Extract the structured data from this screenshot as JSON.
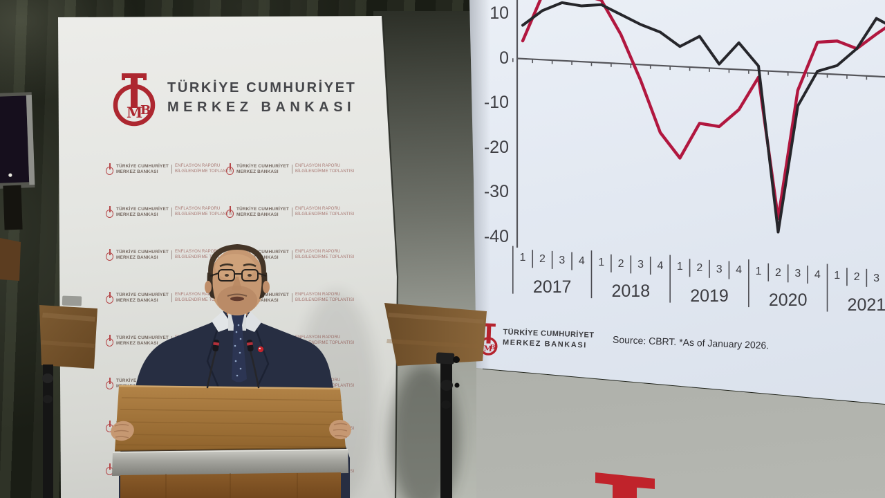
{
  "backdrop": {
    "logo": {
      "line1": "TÜRKİYE CUMHURİYET",
      "line2": "MERKEZ BANKASI"
    },
    "pattern_unit": {
      "brand_line1": "TÜRKİYE CUMHURİYET",
      "brand_line2": "MERKEZ BANKASI",
      "event_line1": "ENFLASYON RAPORU",
      "event_line2": "BİLGİLENDİRME TOPLANTISI"
    },
    "pattern_grid": {
      "rows": 8,
      "cols": 2
    }
  },
  "slide": {
    "footer": {
      "logo_line1": "TÜRKİYE CUMHURİYET",
      "logo_line2": "MERKEZ BANKASI",
      "source": "Source: CBRT. *As of January 2026."
    }
  },
  "chart_data": {
    "type": "line",
    "x_unit": "quarter",
    "years": [
      "2017",
      "2018",
      "2019",
      "2020",
      "2021"
    ],
    "quarter_labels": [
      "1",
      "2",
      "3",
      "4",
      "1",
      "2",
      "3",
      "4",
      "1",
      "2",
      "3",
      "4",
      "1",
      "2",
      "3",
      "4",
      "1",
      "2",
      "3"
    ],
    "y_ticks": [
      "10",
      "0",
      "-10",
      "-20",
      "-30",
      "-40"
    ],
    "y_tick_values": [
      10,
      0,
      -10,
      -20,
      -30,
      -40
    ],
    "ylim": [
      -42,
      16
    ],
    "grid": "off",
    "legend": "not visible (cropped above frame)",
    "series": [
      {
        "name": "red-series",
        "color": "#b1173f",
        "values": [
          4,
          14.5,
          15.5,
          15,
          14,
          6.5,
          -3.5,
          -15,
          -20.5,
          -12.5,
          -13,
          -9,
          -1.5,
          -33,
          -4,
          7,
          7.5,
          6,
          9.5
        ],
        "edge_value": 14
      },
      {
        "name": "black-series",
        "color": "#26262b",
        "values": [
          7.5,
          11,
          13,
          12.5,
          13,
          11,
          9,
          7.5,
          4.5,
          7,
          1,
          6,
          1,
          -36,
          -7.5,
          0.5,
          2,
          6,
          13
        ],
        "edge_value": 10
      }
    ]
  },
  "colors": {
    "tcmb_red": "#b5232e",
    "line_red": "#b1173f",
    "line_black": "#26262b",
    "screen_bg": "#e3e9f2",
    "backdrop_white": "#e9eae7",
    "curtain_dark": "#23261d",
    "podium_wood": "#9a6b33"
  }
}
